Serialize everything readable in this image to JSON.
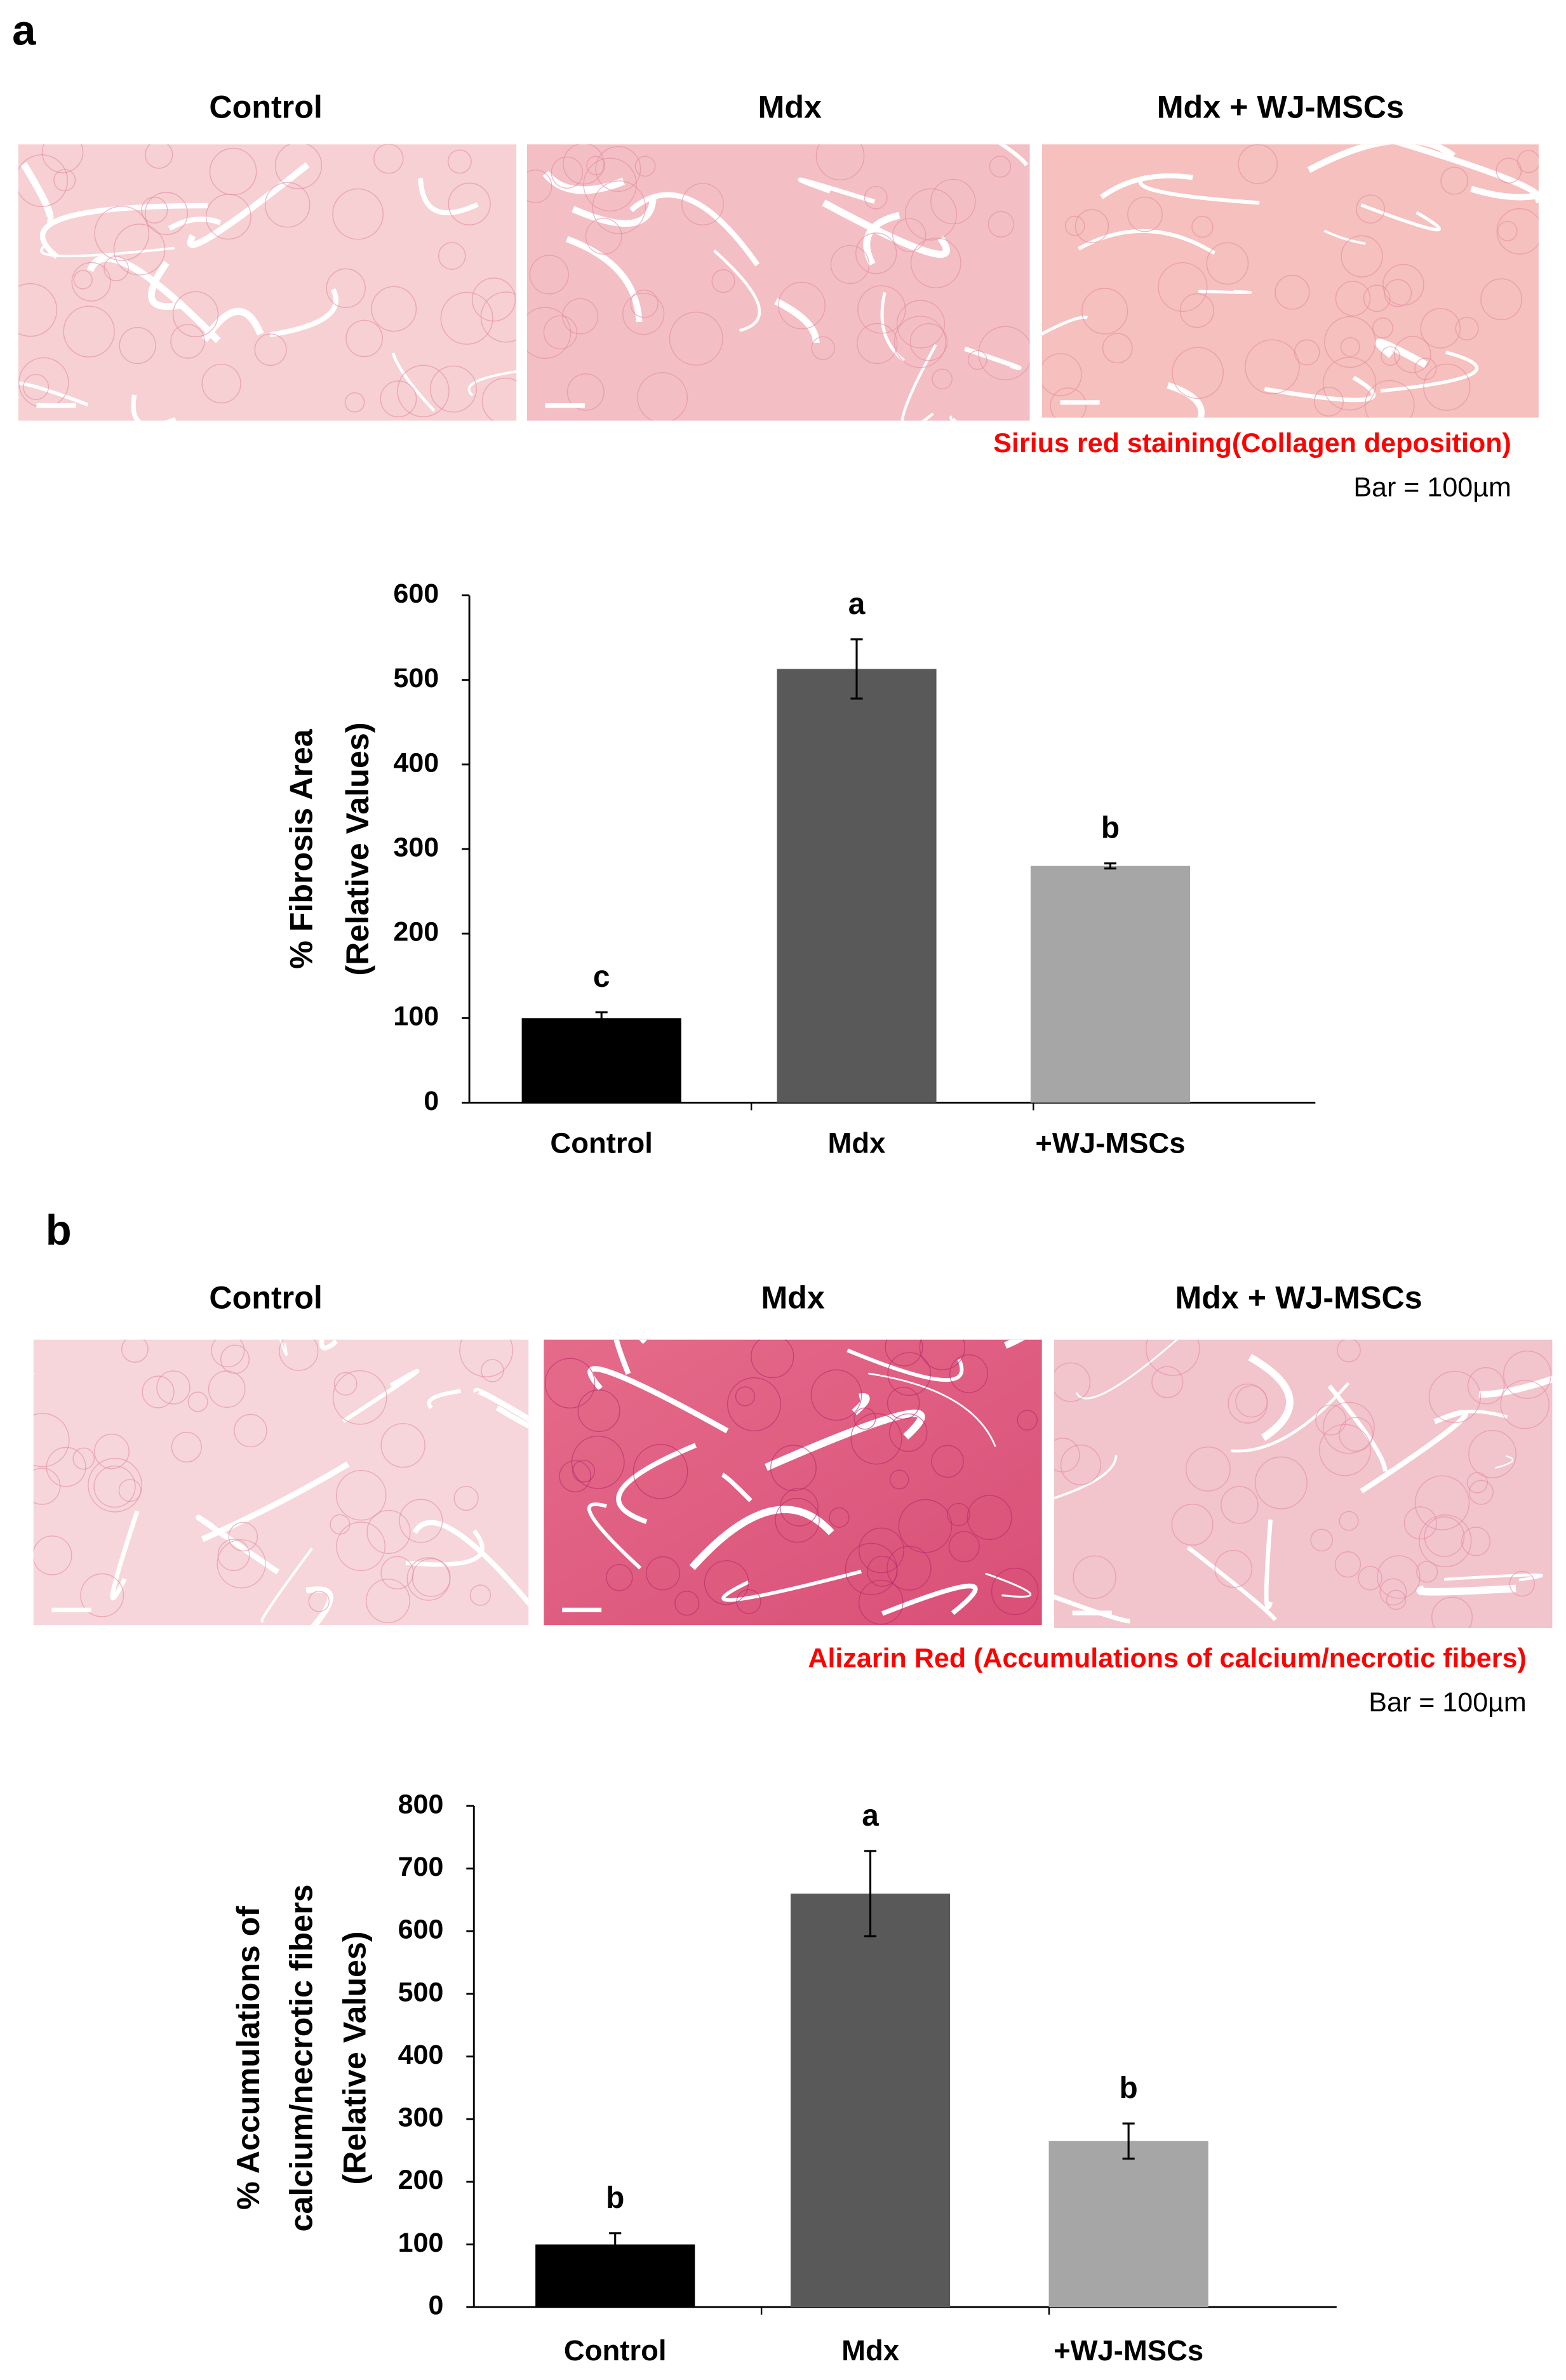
{
  "panels": [
    {
      "label": "a",
      "image_titles": [
        "Control",
        "Mdx",
        "Mdx + WJ-MSCs"
      ],
      "caption": "Sirius red staining(Collagen deposition)",
      "scale_bar": "Bar = 100µm"
    },
    {
      "label": "b",
      "image_titles": [
        "Control",
        "Mdx",
        "Mdx + WJ-MSCs"
      ],
      "caption": "Alizarin Red  (Accumulations of calcium/necrotic fibers)",
      "scale_bar": "Bar = 100µm"
    }
  ],
  "chart_data": [
    {
      "type": "bar",
      "ylabel": [
        "% Fibrosis Area",
        "(Relative Values)"
      ],
      "categories": [
        "Control",
        "Mdx",
        "+WJ-MSCs"
      ],
      "values": [
        100,
        513,
        280
      ],
      "errors": [
        7,
        35,
        3
      ],
      "annotations": [
        "c",
        "a",
        "b"
      ],
      "colors": [
        "#000000",
        "#595959",
        "#a6a6a6"
      ],
      "ylim": [
        0,
        600
      ],
      "yticks": [
        0,
        100,
        200,
        300,
        400,
        500,
        600
      ]
    },
    {
      "type": "bar",
      "ylabel": [
        "% Accumulations of",
        "calcium/necrotic fibers",
        "(Relative Values)"
      ],
      "categories": [
        "Control",
        "Mdx",
        "+WJ-MSCs"
      ],
      "values": [
        100,
        660,
        265
      ],
      "errors": [
        18,
        68,
        28
      ],
      "annotations": [
        "b",
        "a",
        "b"
      ],
      "colors": [
        "#000000",
        "#595959",
        "#a6a6a6"
      ],
      "ylim": [
        0,
        800
      ],
      "yticks": [
        0,
        100,
        200,
        300,
        400,
        500,
        600,
        700,
        800
      ]
    }
  ]
}
